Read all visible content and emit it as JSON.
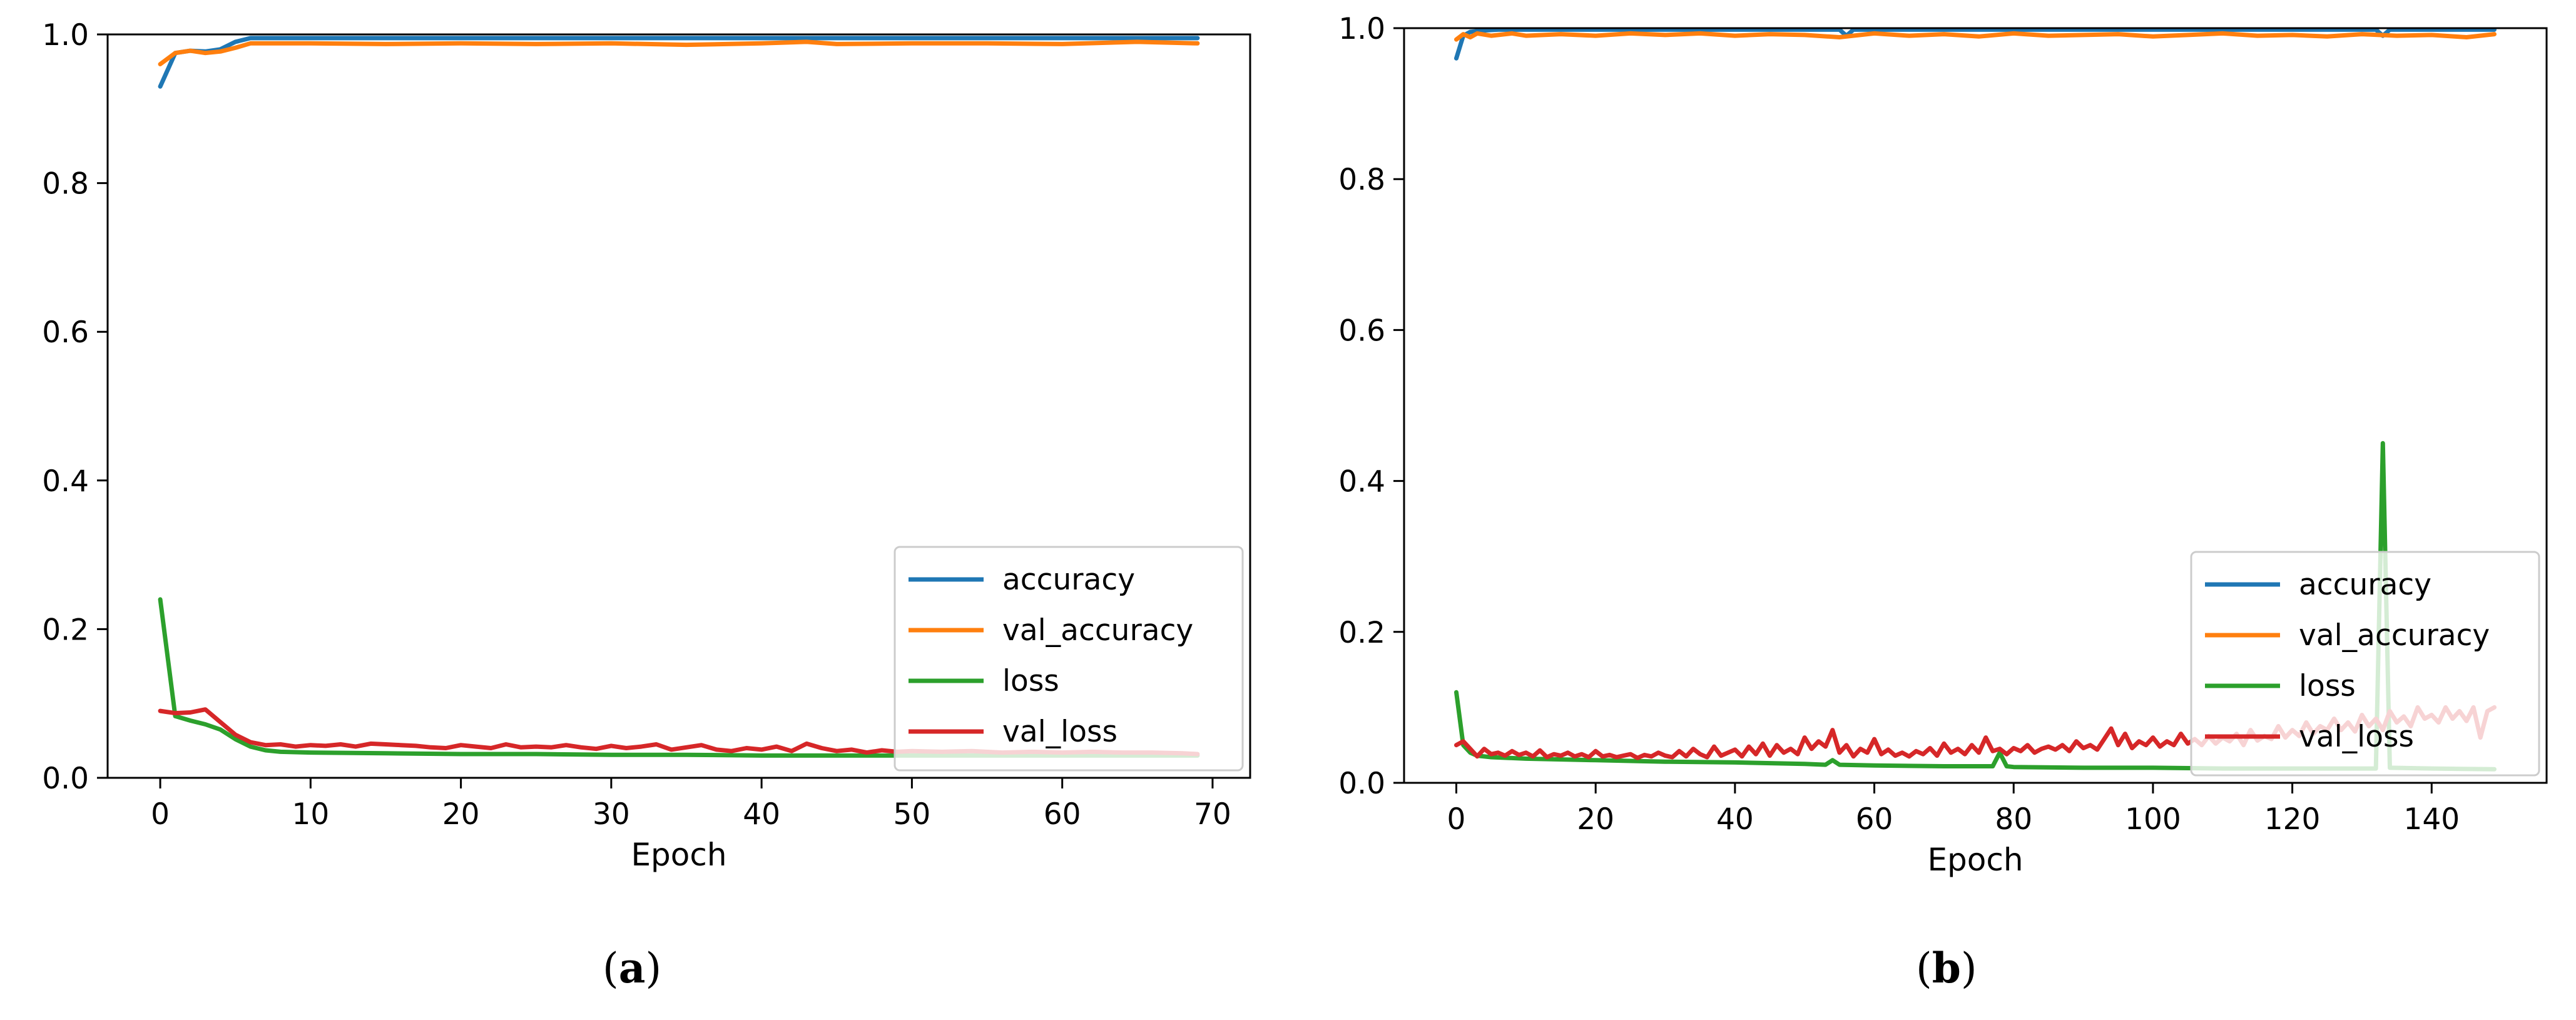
{
  "figure": {
    "captions": [
      "a",
      "b"
    ]
  },
  "chart_data": [
    {
      "type": "line",
      "panel": "a",
      "xlabel": "Epoch",
      "ylabel": "",
      "xlim": [
        -3.5,
        72.5
      ],
      "ylim": [
        0,
        1
      ],
      "xticks": [
        0,
        10,
        20,
        30,
        40,
        50,
        60,
        70
      ],
      "xtick_labels": [
        "0",
        "10",
        "20",
        "30",
        "40",
        "50",
        "60",
        "70"
      ],
      "yticks": [
        0,
        0.2,
        0.4,
        0.6,
        0.8,
        1.0
      ],
      "ytick_labels": [
        "0.0",
        "0.2",
        "0.4",
        "0.6",
        "0.8",
        "1.0"
      ],
      "grid": false,
      "legend": {
        "position": "lower-right",
        "entries": [
          "accuracy",
          "val_accuracy",
          "loss",
          "val_loss"
        ]
      },
      "series": [
        {
          "name": "accuracy",
          "color": "#1f77b4",
          "x": [
            0,
            1,
            2,
            3,
            4,
            5,
            6,
            7,
            8,
            10,
            15,
            20,
            30,
            40,
            50,
            60,
            69
          ],
          "values": [
            0.93,
            0.975,
            0.978,
            0.977,
            0.98,
            0.99,
            0.995,
            0.995,
            0.995,
            0.995,
            0.995,
            0.995,
            0.995,
            0.995,
            0.995,
            0.995,
            0.995
          ]
        },
        {
          "name": "val_accuracy",
          "color": "#ff7f0e",
          "x": [
            0,
            1,
            2,
            3,
            4,
            5,
            6,
            7,
            8,
            10,
            15,
            20,
            25,
            30,
            35,
            40,
            43,
            45,
            50,
            55,
            60,
            65,
            69
          ],
          "values": [
            0.96,
            0.975,
            0.978,
            0.975,
            0.977,
            0.982,
            0.988,
            0.988,
            0.988,
            0.988,
            0.987,
            0.988,
            0.987,
            0.988,
            0.986,
            0.988,
            0.99,
            0.987,
            0.988,
            0.988,
            0.987,
            0.99,
            0.988
          ]
        },
        {
          "name": "loss",
          "color": "#2ca02c",
          "x": [
            0,
            1,
            2,
            3,
            4,
            5,
            6,
            7,
            8,
            10,
            15,
            20,
            25,
            30,
            35,
            40,
            45,
            50,
            55,
            60,
            65,
            69
          ],
          "values": [
            0.24,
            0.083,
            0.077,
            0.072,
            0.065,
            0.052,
            0.042,
            0.037,
            0.035,
            0.034,
            0.033,
            0.032,
            0.032,
            0.031,
            0.031,
            0.03,
            0.03,
            0.03,
            0.03,
            0.03,
            0.03,
            0.03
          ]
        },
        {
          "name": "val_loss",
          "color": "#d62728",
          "x": [
            0,
            1,
            2,
            3,
            4,
            5,
            6,
            7,
            8,
            9,
            10,
            11,
            12,
            13,
            14,
            15,
            16,
            17,
            18,
            19,
            20,
            21,
            22,
            23,
            24,
            25,
            26,
            27,
            28,
            29,
            30,
            31,
            32,
            33,
            34,
            35,
            36,
            37,
            38,
            39,
            40,
            41,
            42,
            43,
            44,
            45,
            46,
            47,
            48,
            49,
            50,
            52,
            54,
            56,
            58,
            60,
            62,
            64,
            66,
            68,
            69
          ],
          "values": [
            0.09,
            0.087,
            0.088,
            0.092,
            0.075,
            0.058,
            0.048,
            0.044,
            0.045,
            0.042,
            0.044,
            0.043,
            0.045,
            0.042,
            0.046,
            0.045,
            0.044,
            0.043,
            0.041,
            0.04,
            0.044,
            0.042,
            0.04,
            0.045,
            0.041,
            0.042,
            0.041,
            0.044,
            0.041,
            0.039,
            0.043,
            0.04,
            0.042,
            0.045,
            0.038,
            0.041,
            0.044,
            0.038,
            0.036,
            0.04,
            0.038,
            0.042,
            0.036,
            0.046,
            0.04,
            0.036,
            0.038,
            0.034,
            0.037,
            0.035,
            0.036,
            0.035,
            0.036,
            0.034,
            0.035,
            0.034,
            0.035,
            0.034,
            0.034,
            0.033,
            0.032
          ]
        }
      ]
    },
    {
      "type": "line",
      "panel": "b",
      "xlabel": "Epoch",
      "ylabel": "",
      "xlim": [
        -7.5,
        156.5
      ],
      "ylim": [
        0,
        1
      ],
      "xticks": [
        0,
        20,
        40,
        60,
        80,
        100,
        120,
        140
      ],
      "xtick_labels": [
        "0",
        "20",
        "40",
        "60",
        "80",
        "100",
        "120",
        "140"
      ],
      "yticks": [
        0,
        0.2,
        0.4,
        0.6,
        0.8,
        1.0
      ],
      "ytick_labels": [
        "0.0",
        "0.2",
        "0.4",
        "0.6",
        "0.8",
        "1.0"
      ],
      "grid": false,
      "legend": {
        "position": "lower-right",
        "entries": [
          "accuracy",
          "val_accuracy",
          "loss",
          "val_loss"
        ]
      },
      "series": [
        {
          "name": "accuracy",
          "color": "#1f77b4",
          "x": [
            0,
            1,
            2,
            4,
            6,
            10,
            20,
            40,
            55,
            56,
            57,
            80,
            100,
            120,
            132,
            133,
            134,
            140,
            149
          ],
          "values": [
            0.96,
            0.99,
            0.995,
            0.997,
            0.998,
            0.998,
            0.998,
            0.998,
            0.998,
            0.99,
            0.998,
            0.998,
            0.998,
            0.998,
            0.998,
            0.99,
            0.998,
            0.998,
            0.998
          ]
        },
        {
          "name": "val_accuracy",
          "color": "#ff7f0e",
          "x": [
            0,
            1,
            2,
            3,
            5,
            8,
            10,
            15,
            20,
            25,
            30,
            35,
            40,
            45,
            50,
            55,
            60,
            65,
            70,
            75,
            80,
            85,
            90,
            95,
            100,
            105,
            110,
            115,
            120,
            125,
            130,
            135,
            140,
            145,
            149
          ],
          "values": [
            0.985,
            0.992,
            0.988,
            0.993,
            0.99,
            0.993,
            0.99,
            0.992,
            0.99,
            0.993,
            0.991,
            0.993,
            0.99,
            0.992,
            0.991,
            0.988,
            0.993,
            0.99,
            0.992,
            0.989,
            0.993,
            0.99,
            0.991,
            0.992,
            0.989,
            0.991,
            0.993,
            0.99,
            0.991,
            0.989,
            0.992,
            0.99,
            0.991,
            0.988,
            0.992
          ]
        },
        {
          "name": "loss",
          "color": "#2ca02c",
          "x": [
            0,
            1,
            2,
            3,
            5,
            10,
            20,
            30,
            40,
            50,
            53,
            54,
            55,
            60,
            70,
            77,
            78,
            79,
            80,
            90,
            100,
            110,
            120,
            130,
            132,
            133,
            134,
            140,
            149
          ],
          "values": [
            0.12,
            0.05,
            0.04,
            0.036,
            0.034,
            0.032,
            0.03,
            0.028,
            0.027,
            0.025,
            0.024,
            0.03,
            0.024,
            0.023,
            0.022,
            0.022,
            0.04,
            0.022,
            0.021,
            0.02,
            0.02,
            0.019,
            0.019,
            0.019,
            0.019,
            0.45,
            0.02,
            0.019,
            0.018
          ]
        },
        {
          "name": "val_loss",
          "color": "#d62728",
          "x": [
            0,
            1,
            2,
            3,
            4,
            5,
            6,
            7,
            8,
            9,
            10,
            11,
            12,
            13,
            14,
            15,
            16,
            17,
            18,
            19,
            20,
            21,
            22,
            23,
            24,
            25,
            26,
            27,
            28,
            29,
            30,
            31,
            32,
            33,
            34,
            35,
            36,
            37,
            38,
            39,
            40,
            41,
            42,
            43,
            44,
            45,
            46,
            47,
            48,
            49,
            50,
            51,
            52,
            53,
            54,
            55,
            56,
            57,
            58,
            59,
            60,
            61,
            62,
            63,
            64,
            65,
            66,
            67,
            68,
            69,
            70,
            71,
            72,
            73,
            74,
            75,
            76,
            77,
            78,
            79,
            80,
            81,
            82,
            83,
            84,
            85,
            86,
            87,
            88,
            89,
            90,
            91,
            92,
            93,
            94,
            95,
            96,
            97,
            98,
            99,
            100,
            101,
            102,
            103,
            104,
            105,
            106,
            107,
            108,
            109,
            110,
            111,
            112,
            113,
            114,
            115,
            116,
            117,
            118,
            119,
            120,
            121,
            122,
            123,
            124,
            125,
            126,
            127,
            128,
            129,
            130,
            131,
            132,
            133,
            134,
            135,
            136,
            137,
            138,
            139,
            140,
            141,
            142,
            143,
            144,
            145,
            146,
            147,
            148,
            149
          ],
          "values": [
            0.05,
            0.055,
            0.045,
            0.035,
            0.045,
            0.038,
            0.04,
            0.036,
            0.042,
            0.037,
            0.04,
            0.035,
            0.043,
            0.034,
            0.038,
            0.036,
            0.04,
            0.035,
            0.038,
            0.034,
            0.042,
            0.035,
            0.037,
            0.034,
            0.036,
            0.038,
            0.033,
            0.037,
            0.035,
            0.04,
            0.036,
            0.034,
            0.042,
            0.035,
            0.045,
            0.038,
            0.034,
            0.048,
            0.036,
            0.04,
            0.044,
            0.035,
            0.048,
            0.038,
            0.052,
            0.036,
            0.05,
            0.04,
            0.045,
            0.038,
            0.06,
            0.045,
            0.055,
            0.048,
            0.07,
            0.04,
            0.05,
            0.035,
            0.045,
            0.04,
            0.058,
            0.038,
            0.044,
            0.036,
            0.04,
            0.035,
            0.042,
            0.038,
            0.046,
            0.036,
            0.052,
            0.04,
            0.045,
            0.038,
            0.05,
            0.04,
            0.06,
            0.042,
            0.045,
            0.038,
            0.046,
            0.042,
            0.05,
            0.04,
            0.045,
            0.048,
            0.044,
            0.05,
            0.042,
            0.055,
            0.046,
            0.05,
            0.044,
            0.058,
            0.072,
            0.05,
            0.065,
            0.046,
            0.055,
            0.05,
            0.06,
            0.048,
            0.055,
            0.05,
            0.065,
            0.052,
            0.058,
            0.05,
            0.062,
            0.052,
            0.06,
            0.055,
            0.065,
            0.05,
            0.07,
            0.056,
            0.062,
            0.058,
            0.075,
            0.06,
            0.07,
            0.062,
            0.08,
            0.065,
            0.075,
            0.07,
            0.085,
            0.07,
            0.08,
            0.068,
            0.09,
            0.075,
            0.085,
            0.07,
            0.095,
            0.08,
            0.088,
            0.075,
            0.1,
            0.085,
            0.09,
            0.08,
            0.1,
            0.085,
            0.095,
            0.082,
            0.1,
            0.06,
            0.095,
            0.1
          ]
        }
      ]
    }
  ]
}
